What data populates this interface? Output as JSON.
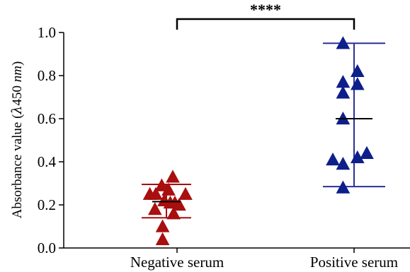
{
  "chart_data": {
    "type": "scatter",
    "ylabel": {
      "before": "Absorbance value (",
      "lambda": "λ",
      "num": "450 ",
      "unit": "nm",
      "after": ")"
    },
    "ylim": [
      0,
      1.0
    ],
    "yticks": [
      "0.0",
      "0.2",
      "0.4",
      "0.6",
      "0.8",
      "1.0"
    ],
    "significance": "****",
    "groups": [
      {
        "category": "Negative serum",
        "color": "#a80f0f",
        "errorbar_color": "#a80f0f",
        "points": [
          {
            "offset": -0.64,
            "y": 0.25
          },
          {
            "offset": -0.5,
            "y": 0.25
          },
          {
            "offset": -0.36,
            "y": 0.29
          },
          {
            "offset": -0.52,
            "y": 0.18
          },
          {
            "offset": -0.3,
            "y": 0.22
          },
          {
            "offset": -0.2,
            "y": 0.27
          },
          {
            "offset": -0.16,
            "y": 0.21
          },
          {
            "offset": -0.1,
            "y": 0.33
          },
          {
            "offset": -0.05,
            "y": 0.21
          },
          {
            "offset": -0.08,
            "y": 0.16
          },
          {
            "offset": 0.05,
            "y": 0.2
          },
          {
            "offset": 0.2,
            "y": 0.25
          },
          {
            "offset": -0.34,
            "y": 0.1
          },
          {
            "offset": -0.34,
            "y": 0.04
          }
        ],
        "mean": 0.215,
        "lower": 0.14,
        "upper": 0.295
      },
      {
        "category": "Positive serum",
        "color": "#0d1f8a",
        "errorbar_color": "#2d2f9a",
        "points": [
          {
            "offset": -0.5,
            "y": 0.41
          },
          {
            "offset": -0.26,
            "y": 0.95
          },
          {
            "offset": -0.26,
            "y": 0.77
          },
          {
            "offset": -0.26,
            "y": 0.72
          },
          {
            "offset": -0.26,
            "y": 0.6
          },
          {
            "offset": -0.26,
            "y": 0.39
          },
          {
            "offset": -0.26,
            "y": 0.28
          },
          {
            "offset": 0.08,
            "y": 0.82
          },
          {
            "offset": 0.08,
            "y": 0.76
          },
          {
            "offset": 0.08,
            "y": 0.42
          },
          {
            "offset": 0.3,
            "y": 0.44
          }
        ],
        "mean": 0.6,
        "lower": 0.285,
        "upper": 0.95
      }
    ]
  }
}
